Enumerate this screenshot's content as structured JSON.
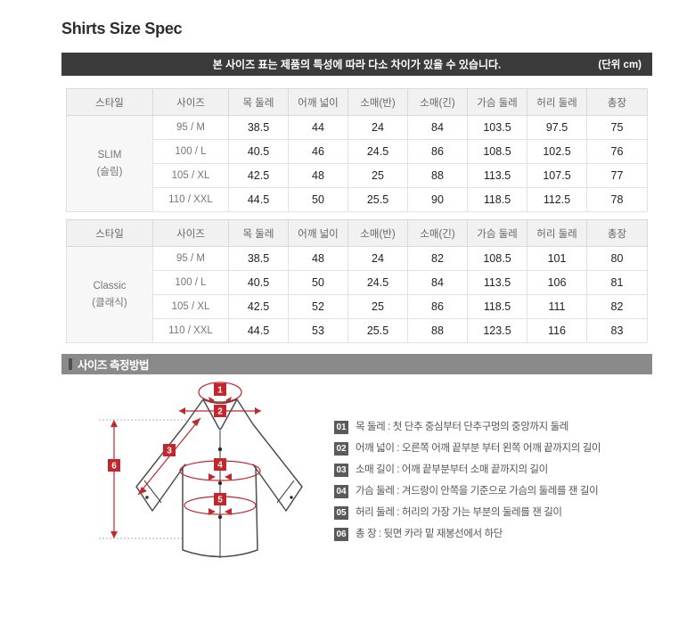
{
  "page_title": "Shirts Size Spec",
  "notice": {
    "text": "본 사이즈 표는 제품의 특성에 따라 다소 차이가 있을 수 있습니다.",
    "unit": "(단위 cm)"
  },
  "size_tables": {
    "headers": [
      "스타일",
      "사이즈",
      "목 둘레",
      "어깨 넓이",
      "소매(반)",
      "소매(긴)",
      "가슴 둘레",
      "허리 둘레",
      "총장"
    ],
    "tables": [
      {
        "style_name": "SLIM",
        "style_sub": "(슬림)",
        "rows": [
          {
            "size": "95 / M",
            "values": [
              "38.5",
              "44",
              "24",
              "84",
              "103.5",
              "97.5",
              "75"
            ]
          },
          {
            "size": "100 / L",
            "values": [
              "40.5",
              "46",
              "24.5",
              "86",
              "108.5",
              "102.5",
              "76"
            ]
          },
          {
            "size": "105 / XL",
            "values": [
              "42.5",
              "48",
              "25",
              "88",
              "113.5",
              "107.5",
              "77"
            ]
          },
          {
            "size": "110 / XXL",
            "values": [
              "44.5",
              "50",
              "25.5",
              "90",
              "118.5",
              "112.5",
              "78"
            ]
          }
        ]
      },
      {
        "style_name": "Classic",
        "style_sub": "(클래식)",
        "rows": [
          {
            "size": "95 / M",
            "values": [
              "38.5",
              "48",
              "24",
              "82",
              "108.5",
              "101",
              "80"
            ]
          },
          {
            "size": "100 / L",
            "values": [
              "40.5",
              "50",
              "24.5",
              "84",
              "113.5",
              "106",
              "81"
            ]
          },
          {
            "size": "105 / XL",
            "values": [
              "42.5",
              "52",
              "25",
              "86",
              "118.5",
              "111",
              "82"
            ]
          },
          {
            "size": "110 / XXL",
            "values": [
              "44.5",
              "53",
              "25.5",
              "88",
              "123.5",
              "116",
              "83"
            ]
          }
        ]
      }
    ]
  },
  "measure_section": {
    "title": "사이즈 측정방법",
    "diagram_markers": [
      "1",
      "2",
      "3",
      "4",
      "5",
      "6"
    ],
    "legend": [
      {
        "num": "01",
        "text": "목 둘레 : 첫 단추 중심부터 단추구멍의 중앙까지 둘레"
      },
      {
        "num": "02",
        "text": "어깨 넓이 : 오른쪽 어깨 끝부분 부터 왼쪽 어깨 끝까지의 길이"
      },
      {
        "num": "03",
        "text": "소매 길이 : 어깨 끝부분부터 소매 끝까지의 길이"
      },
      {
        "num": "04",
        "text": "가슴 둘레 : 겨드랑이 안쪽을 기준으로 가슴의 둘레를 잰 길이"
      },
      {
        "num": "05",
        "text": "허리 둘레 : 허리의 가장 가는 부분의 둘레를 잰 길이"
      },
      {
        "num": "06",
        "text": "총 장 : 뒷면 카라 밑 재봉선에서 하단"
      }
    ]
  },
  "colors": {
    "accent_red": "#c1272d",
    "notice_bar_bg": "#3b3b3b",
    "section_bar_bg": "#8a8a8a",
    "legend_badge_bg": "#5a5a5a",
    "table_header_bg": "#f1f1f1"
  }
}
